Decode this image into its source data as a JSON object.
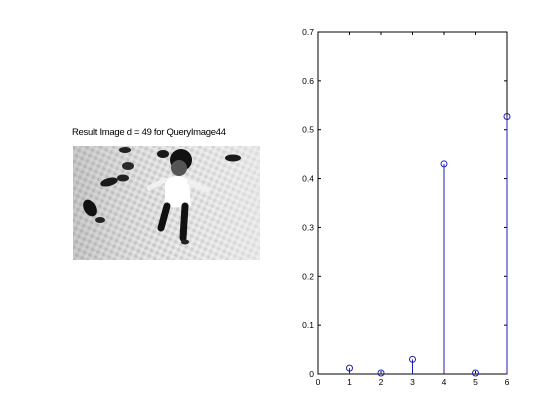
{
  "left_panel": {
    "title": "Result Image d = 49 for QueryImage44"
  },
  "chart_data": {
    "type": "stem",
    "x": [
      1,
      2,
      3,
      4,
      5,
      6
    ],
    "values": [
      0.012,
      0.002,
      0.03,
      0.43,
      0.002,
      0.527
    ],
    "xlim": [
      0,
      6
    ],
    "ylim": [
      0,
      0.7
    ],
    "xticks": [
      "0",
      "1",
      "2",
      "3",
      "4",
      "5",
      "6"
    ],
    "yticks": [
      "0",
      "0.1",
      "0.2",
      "0.3",
      "0.4",
      "0.5",
      "0.6",
      "0.7"
    ],
    "title": "",
    "xlabel": "",
    "ylabel": "",
    "grid": false,
    "marker": "circle",
    "color": "#1f1fbf"
  }
}
